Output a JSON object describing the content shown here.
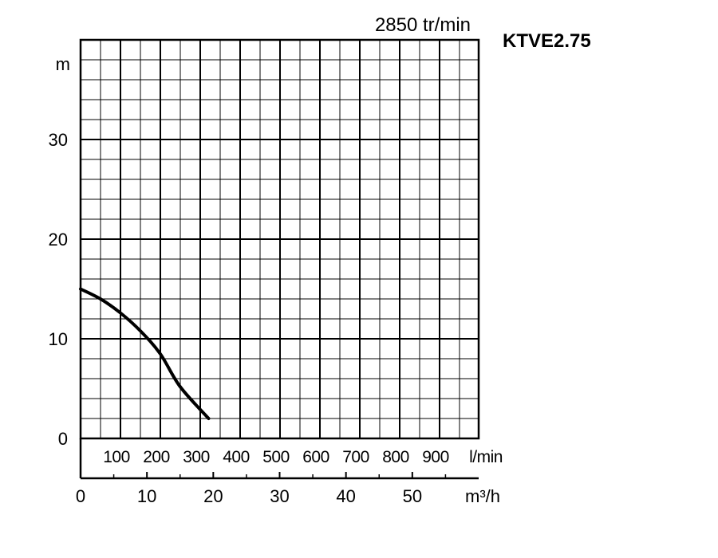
{
  "chart_data": {
    "type": "line",
    "title": "KTVE2.75",
    "subtitle": "2850 tr/min",
    "ylabel": "m",
    "xlabel": "m³/h",
    "secondary_xlabel": "l/min",
    "xlim": [
      0,
      60
    ],
    "ylim": [
      0,
      40
    ],
    "grid": true,
    "y_ticks": [
      "0",
      "10",
      "20",
      "30"
    ],
    "x_ticks": [
      "0",
      "10",
      "20",
      "30",
      "40",
      "50"
    ],
    "secondary_x_ticks": [
      "100",
      "200",
      "300",
      "400",
      "500",
      "600",
      "700",
      "800",
      "900"
    ],
    "series": [
      {
        "x": [
          0,
          3,
          6,
          9,
          12,
          15,
          19.3
        ],
        "y": [
          15,
          14,
          12.6,
          10.8,
          8.5,
          5.2,
          2
        ]
      }
    ]
  }
}
